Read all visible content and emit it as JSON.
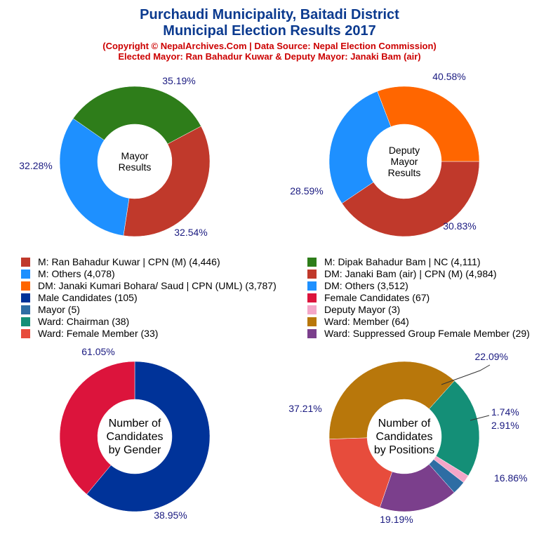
{
  "header": {
    "title_line1": "Purchaudi Municipality, Baitadi District",
    "title_line2": "Municipal Election Results 2017",
    "subtitle_line1": "(Copyright © NepalArchives.Com | Data Source: Nepal Election Commission)",
    "subtitle_line2": "Elected Mayor: Ran Bahadur Kuwar & Deputy Mayor: Janaki Bam (air)"
  },
  "chart_data": [
    {
      "type": "pie",
      "donut": true,
      "center_label": [
        "Mayor",
        "Results"
      ],
      "slices": [
        {
          "label": "M: Ran Bahadur Kuwar | CPN (M)",
          "value": 4446,
          "percent_label": "35.19%",
          "color": "#c0392b"
        },
        {
          "label": "M: Others",
          "value": 4078,
          "percent_label": "32.28%",
          "color": "#1e90ff"
        },
        {
          "label": "M: Dipak Bahadur Bam | NC",
          "value": 4111,
          "percent_label": "32.54%",
          "color": "#2e7d1a"
        }
      ]
    },
    {
      "type": "pie",
      "donut": true,
      "center_label": [
        "Deputy",
        "Mayor",
        "Results"
      ],
      "slices": [
        {
          "label": "DM: Janaki Bam (air) | CPN (M)",
          "value": 4984,
          "percent_label": "40.58%",
          "color": "#c0392b"
        },
        {
          "label": "DM: Others",
          "value": 3512,
          "percent_label": "28.59%",
          "color": "#1e90ff"
        },
        {
          "label": "DM: Janaki Kumari Bohara/ Saud | CPN (UML)",
          "value": 3787,
          "percent_label": "30.83%",
          "color": "#ff6600"
        }
      ]
    },
    {
      "type": "pie",
      "donut": true,
      "center_label": [
        "Number of",
        "Candidates",
        "by Gender"
      ],
      "slices": [
        {
          "label": "Male Candidates",
          "value": 105,
          "percent_label": "61.05%",
          "color": "#003399"
        },
        {
          "label": "Female Candidates",
          "value": 67,
          "percent_label": "38.95%",
          "color": "#dc143c"
        }
      ]
    },
    {
      "type": "pie",
      "donut": true,
      "center_label": [
        "Number of",
        "Candidates",
        "by Positions"
      ],
      "slices": [
        {
          "label": "Ward: Chairman",
          "value": 38,
          "percent_label": "22.09%",
          "color": "#148f77"
        },
        {
          "label": "Deputy Mayor",
          "value": 3,
          "percent_label": "1.74%",
          "color": "#f4a6c8"
        },
        {
          "label": "Mayor",
          "value": 5,
          "percent_label": "2.91%",
          "color": "#2e6da4"
        },
        {
          "label": "Ward: Suppressed Group Female Member",
          "value": 29,
          "percent_label": "16.86%",
          "color": "#7b3f8c"
        },
        {
          "label": "Ward: Female Member",
          "value": 33,
          "percent_label": "19.19%",
          "color": "#e74c3c"
        },
        {
          "label": "Ward: Member",
          "value": 64,
          "percent_label": "37.21%",
          "color": "#b8770b"
        }
      ]
    }
  ],
  "legend": [
    {
      "text": "M: Ran Bahadur Kuwar | CPN (M) (4,446)",
      "color": "#c0392b"
    },
    {
      "text": "M: Dipak Bahadur Bam | NC (4,111)",
      "color": "#2e7d1a"
    },
    {
      "text": "M: Others (4,078)",
      "color": "#1e90ff"
    },
    {
      "text": "DM: Janaki Bam (air) | CPN (M) (4,984)",
      "color": "#c0392b"
    },
    {
      "text": "DM: Janaki Kumari Bohara/ Saud | CPN (UML) (3,787)",
      "color": "#ff6600"
    },
    {
      "text": "DM: Others (3,512)",
      "color": "#1e90ff"
    },
    {
      "text": "Male Candidates (105)",
      "color": "#003399"
    },
    {
      "text": "Female Candidates (67)",
      "color": "#dc143c"
    },
    {
      "text": "Mayor (5)",
      "color": "#2e6da4"
    },
    {
      "text": "Deputy Mayor (3)",
      "color": "#f4a6c8"
    },
    {
      "text": "Ward: Chairman (38)",
      "color": "#148f77"
    },
    {
      "text": "Ward: Member (64)",
      "color": "#b8770b"
    },
    {
      "text": "Ward: Female Member (33)",
      "color": "#e74c3c"
    },
    {
      "text": "Ward: Suppressed Group Female Member (29)",
      "color": "#7b3f8c"
    }
  ]
}
